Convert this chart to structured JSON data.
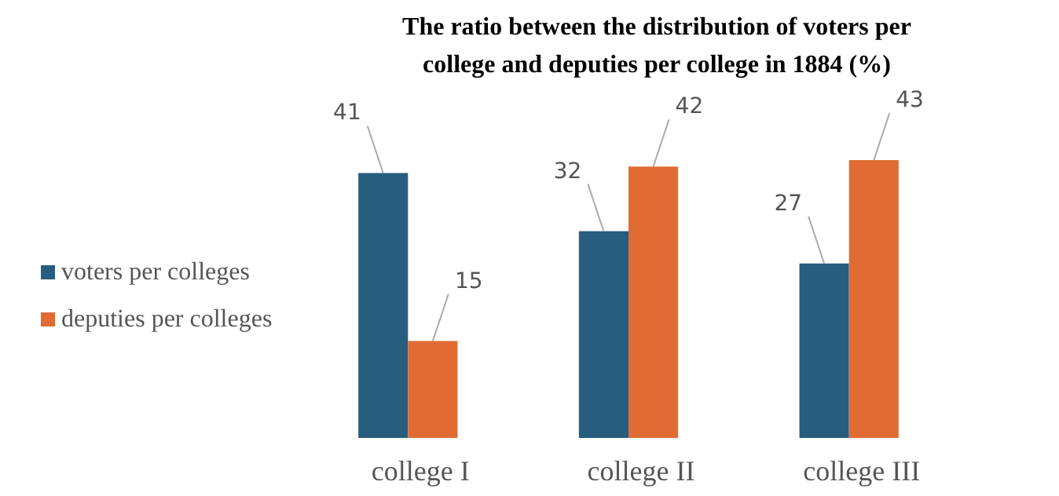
{
  "chart_data": {
    "type": "bar",
    "title": "The ratio between the distribution of voters per college and deputies per college in 1884 (%)",
    "categories": [
      "college I",
      "college II",
      "college III"
    ],
    "series": [
      {
        "name": "voters per colleges",
        "color": "#275d7e",
        "values": [
          41,
          32,
          27
        ]
      },
      {
        "name": "deputies per colleges",
        "color": "#e06c33",
        "values": [
          15,
          42,
          43
        ]
      }
    ],
    "data_labels": true,
    "legend": "left"
  }
}
